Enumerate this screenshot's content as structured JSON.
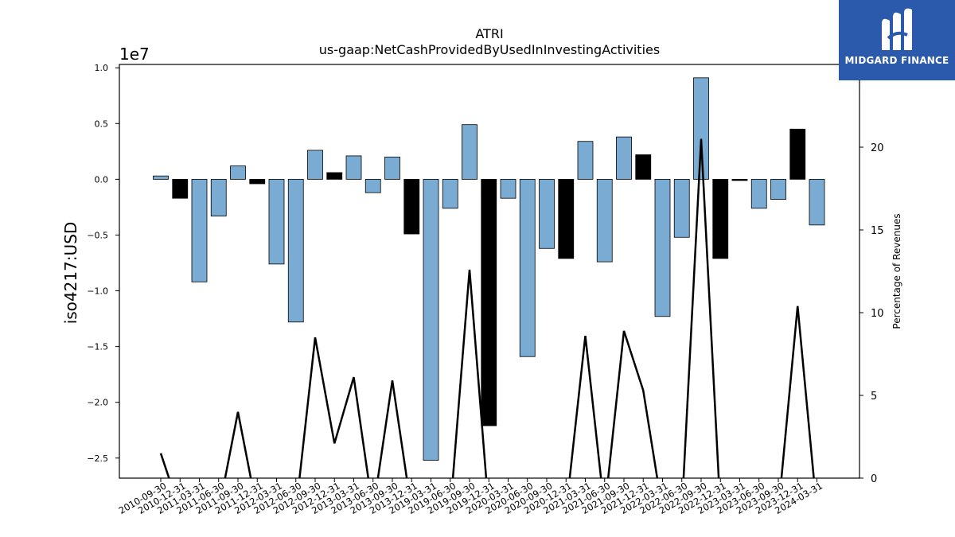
{
  "chart_data": {
    "type": "bar",
    "title": "ATRI",
    "subtitle": "us-gaap:NetCashProvidedByUsedInInvestingActivities",
    "ylabel": "iso4217:USD",
    "y2label": "Percentage of Revenues",
    "y_offset_label": "1e7",
    "ylim": [
      -2.68,
      1.03
    ],
    "y2lim": [
      0,
      25
    ],
    "yticks": [
      "1.0",
      "0.5",
      "0.0",
      "−0.5",
      "−1.0",
      "−1.5",
      "−2.0",
      "−2.5"
    ],
    "ytick_values": [
      1.0,
      0.5,
      0.0,
      -0.5,
      -1.0,
      -1.5,
      -2.0,
      -2.5
    ],
    "y2ticks": [
      0,
      5,
      10,
      15,
      20
    ],
    "categories": [
      "2010-09-30",
      "2010-12-31",
      "2011-03-31",
      "2011-06-30",
      "2011-09-30",
      "2011-12-31",
      "2012-03-31",
      "2012-06-30",
      "2012-09-30",
      "2012-12-31",
      "2013-03-31",
      "2013-06-30",
      "2013-09-30",
      "2013-12-31",
      "2019-03-31",
      "2019-06-30",
      "2019-09-30",
      "2019-12-31",
      "2020-03-31",
      "2020-06-30",
      "2020-09-30",
      "2020-12-31",
      "2021-03-31",
      "2021-06-30",
      "2021-09-30",
      "2021-12-31",
      "2022-03-31",
      "2022-06-30",
      "2022-09-30",
      "2022-12-31",
      "2023-03-31",
      "2023-06-30",
      "2023-09-30",
      "2023-12-31",
      "2024-03-31"
    ],
    "values": [
      0.03,
      -0.17,
      -0.92,
      -0.33,
      0.12,
      -0.04,
      -0.76,
      -1.28,
      0.26,
      0.06,
      0.21,
      -0.12,
      0.2,
      -0.49,
      -2.52,
      -0.26,
      0.49,
      -2.21,
      -0.17,
      -1.59,
      -0.62,
      -0.71,
      0.34,
      -0.74,
      0.38,
      0.22,
      -1.23,
      -0.52,
      0.91,
      -0.71,
      -0.01,
      -0.26,
      -0.18,
      0.45,
      -0.41
    ],
    "bar_colors": [
      "blue",
      "black",
      "blue",
      "blue",
      "blue",
      "black",
      "blue",
      "blue",
      "blue",
      "black",
      "blue",
      "blue",
      "blue",
      "black",
      "blue",
      "blue",
      "blue",
      "black",
      "blue",
      "blue",
      "blue",
      "black",
      "blue",
      "blue",
      "blue",
      "black",
      "blue",
      "blue",
      "blue",
      "black",
      "black",
      "blue",
      "blue",
      "black",
      "blue"
    ],
    "line_values": [
      1.5,
      -2.0,
      -2.0,
      -2.0,
      4.0,
      -2.0,
      -2.0,
      -2.0,
      8.5,
      2.1,
      6.1,
      -2.0,
      5.9,
      -2.0,
      -2.0,
      -2.0,
      12.6,
      -2.0,
      -2.0,
      -2.0,
      -2.0,
      -2.0,
      8.6,
      -2.0,
      8.9,
      5.3,
      -2.0,
      -2.0,
      20.5,
      -2.0,
      -2.0,
      -2.0,
      -2.0,
      10.4,
      -2.0
    ],
    "colors": {
      "blue": "#7aabd2",
      "black": "#000000",
      "line": "#000000"
    }
  },
  "logo": {
    "text": "MIDGARD FINANCE"
  }
}
